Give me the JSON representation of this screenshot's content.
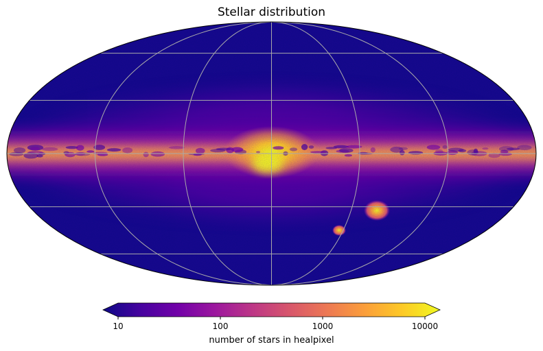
{
  "chart_data": {
    "type": "heatmap",
    "projection": "mollweide",
    "title": "Stellar distribution",
    "colormap": "plasma",
    "colormap_stops": [
      "#0d0887",
      "#46039f",
      "#7201a8",
      "#9c179e",
      "#bd3786",
      "#d8576b",
      "#ed7953",
      "#fb9f3a",
      "#fdca26",
      "#f0f921"
    ],
    "scale": "log",
    "value_range": [
      10,
      10000
    ],
    "graticule": true,
    "graticule_color": "#aaaaaa",
    "colorbar": {
      "label": "number of stars in healpixel",
      "ticks": [
        {
          "value": 10,
          "label": "10"
        },
        {
          "value": 100,
          "label": "100"
        },
        {
          "value": 1000,
          "label": "1000"
        },
        {
          "value": 10000,
          "label": "10000"
        }
      ],
      "extend": "both",
      "orientation": "horizontal",
      "placement": "bottom"
    }
  }
}
